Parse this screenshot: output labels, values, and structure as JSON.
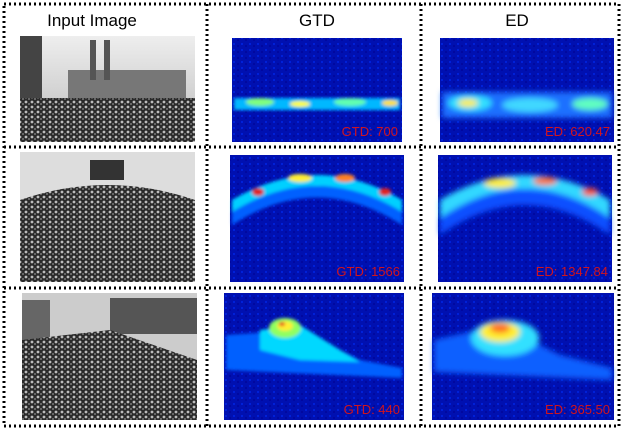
{
  "header": {
    "columns": [
      "Input Image",
      "GTD",
      "ED"
    ]
  },
  "rows": [
    {
      "gtd_label": "GTD: 700",
      "ed_label": "ED: 620.47"
    },
    {
      "gtd_label": "GTD: 1566",
      "ed_label": "ED: 1347.84"
    },
    {
      "gtd_label": "GTD: 440",
      "ed_label": "ED: 365.50"
    }
  ]
}
